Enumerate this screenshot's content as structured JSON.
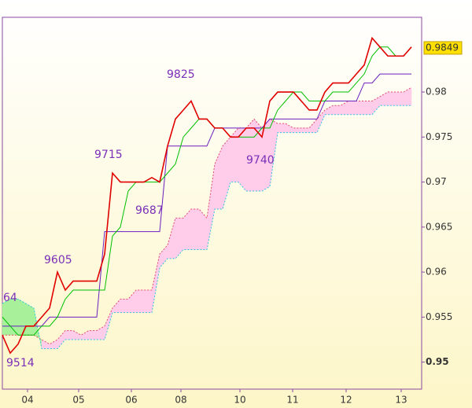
{
  "chart_data": {
    "type": "ichimoku",
    "x": [
      0,
      1,
      2,
      3,
      4,
      5,
      6,
      7,
      8,
      9,
      10,
      11,
      12,
      13,
      14,
      15,
      16,
      17,
      18,
      19,
      20,
      21,
      22,
      23,
      24,
      25,
      26,
      27,
      28,
      29,
      30,
      31,
      32,
      33,
      34,
      35,
      36,
      37,
      38,
      39,
      40,
      41,
      42,
      43,
      44,
      45,
      46,
      47,
      48,
      49,
      50,
      51,
      52
    ],
    "xlim": [
      0,
      53.3
    ],
    "xticks": [
      {
        "value": 3.2,
        "label": "04"
      },
      {
        "value": 9.7,
        "label": "05"
      },
      {
        "value": 16.4,
        "label": "06"
      },
      {
        "value": 22.7,
        "label": "08"
      },
      {
        "value": 30.2,
        "label": "10"
      },
      {
        "value": 36.9,
        "label": "11"
      },
      {
        "value": 43.7,
        "label": "12"
      },
      {
        "value": 50.7,
        "label": "13"
      }
    ],
    "ylim": [
      0.947,
      0.9883
    ],
    "yticks": [
      0.95,
      0.955,
      0.96,
      0.965,
      0.97,
      0.975,
      0.98
    ],
    "last_value": 0.9849,
    "series": [
      {
        "color": "#e00000",
        "values": [
          0.953,
          0.951,
          0.952,
          0.954,
          0.954,
          0.955,
          0.956,
          0.96,
          0.958,
          0.959,
          0.959,
          0.959,
          0.959,
          0.962,
          0.971,
          0.97,
          0.97,
          0.97,
          0.97,
          0.9705,
          0.97,
          0.974,
          0.977,
          0.978,
          0.979,
          0.977,
          0.977,
          0.976,
          0.976,
          0.975,
          0.975,
          0.976,
          0.976,
          0.975,
          0.979,
          0.98,
          0.98,
          0.98,
          0.979,
          0.978,
          0.978,
          0.98,
          0.981,
          0.981,
          0.981,
          0.982,
          0.983,
          0.986,
          0.985,
          0.984,
          0.984,
          0.984,
          0.985
        ]
      },
      {
        "color": "#00c000",
        "values": [
          0.955,
          0.954,
          0.953,
          0.953,
          0.953,
          0.954,
          0.954,
          0.955,
          0.957,
          0.958,
          0.958,
          0.958,
          0.958,
          0.958,
          0.964,
          0.965,
          0.969,
          0.97,
          0.97,
          0.97,
          0.97,
          0.971,
          0.972,
          0.975,
          0.976,
          0.977,
          0.977,
          0.976,
          0.976,
          0.975,
          0.975,
          0.975,
          0.975,
          0.976,
          0.976,
          0.978,
          0.979,
          0.98,
          0.98,
          0.979,
          0.979,
          0.979,
          0.98,
          0.98,
          0.98,
          0.981,
          0.982,
          0.984,
          0.985,
          0.985,
          0.984,
          0.984,
          0.985
        ]
      },
      {
        "color": "#6a1fc0",
        "values": [
          0.954,
          0.954,
          0.954,
          0.954,
          0.954,
          0.954,
          0.955,
          0.955,
          0.955,
          0.955,
          0.955,
          0.955,
          0.955,
          0.9645,
          0.9645,
          0.9645,
          0.9645,
          0.9645,
          0.9645,
          0.9645,
          0.9645,
          0.974,
          0.974,
          0.974,
          0.974,
          0.974,
          0.974,
          0.976,
          0.976,
          0.976,
          0.976,
          0.976,
          0.976,
          0.976,
          0.977,
          0.977,
          0.977,
          0.977,
          0.977,
          0.977,
          0.977,
          0.979,
          0.979,
          0.979,
          0.979,
          0.979,
          0.981,
          0.981,
          0.982,
          0.982,
          0.982,
          0.982,
          0.982
        ]
      }
    ],
    "span_a": [
      0.953,
      0.953,
      0.953,
      0.953,
      0.953,
      0.9525,
      0.952,
      0.9525,
      0.9535,
      0.9535,
      0.953,
      0.9535,
      0.9535,
      0.954,
      0.956,
      0.957,
      0.957,
      0.958,
      0.958,
      0.958,
      0.962,
      0.963,
      0.966,
      0.966,
      0.967,
      0.967,
      0.966,
      0.972,
      0.974,
      0.975,
      0.976,
      0.976,
      0.977,
      0.976,
      0.977,
      0.9765,
      0.9765,
      0.976,
      0.976,
      0.976,
      0.977,
      0.978,
      0.9785,
      0.9785,
      0.979,
      0.979,
      0.979,
      0.979,
      0.9795,
      0.98,
      0.98,
      0.98,
      0.9805
    ],
    "span_b": [
      0.9565,
      0.957,
      0.957,
      0.9565,
      0.956,
      0.9515,
      0.9515,
      0.9515,
      0.9525,
      0.9525,
      0.9525,
      0.9525,
      0.9525,
      0.9525,
      0.9555,
      0.9555,
      0.9555,
      0.9555,
      0.9555,
      0.9555,
      0.9605,
      0.9615,
      0.9615,
      0.9625,
      0.9625,
      0.9625,
      0.9625,
      0.967,
      0.967,
      0.97,
      0.97,
      0.969,
      0.969,
      0.969,
      0.9695,
      0.9755,
      0.9755,
      0.9755,
      0.9755,
      0.9755,
      0.9755,
      0.9775,
      0.9775,
      0.9775,
      0.9775,
      0.9775,
      0.9775,
      0.9775,
      0.9785,
      0.9785,
      0.9785,
      0.9785,
      0.9785
    ],
    "annotations": [
      "9825",
      "9715",
      "9687",
      "9605",
      "9740",
      "9514",
      "64"
    ]
  }
}
